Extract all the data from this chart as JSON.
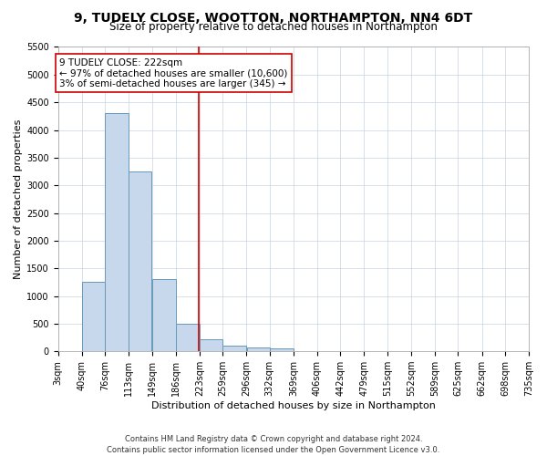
{
  "title": "9, TUDELY CLOSE, WOOTTON, NORTHAMPTON, NN4 6DT",
  "subtitle": "Size of property relative to detached houses in Northampton",
  "xlabel": "Distribution of detached houses by size in Northampton",
  "ylabel": "Number of detached properties",
  "footer_line1": "Contains HM Land Registry data © Crown copyright and database right 2024.",
  "footer_line2": "Contains public sector information licensed under the Open Government Licence v3.0.",
  "annotation_title": "9 TUDELY CLOSE: 222sqm",
  "annotation_line1": "← 97% of detached houses are smaller (10,600)",
  "annotation_line2": "3% of semi-detached houses are larger (345) →",
  "property_line_x": 222,
  "bar_color": "#c8d8ec",
  "bar_edge_color": "#6699bb",
  "annotation_box_edgecolor": "#cc0000",
  "property_line_color": "#cc0000",
  "ylim": [
    0,
    5500
  ],
  "yticks": [
    0,
    500,
    1000,
    1500,
    2000,
    2500,
    3000,
    3500,
    4000,
    4500,
    5000,
    5500
  ],
  "bins": [
    3,
    40,
    76,
    113,
    149,
    186,
    223,
    259,
    296,
    332,
    369,
    406,
    442,
    479,
    515,
    552,
    589,
    625,
    662,
    698,
    735
  ],
  "bar_heights": [
    0,
    1250,
    4300,
    3250,
    1300,
    500,
    225,
    100,
    75,
    55,
    0,
    0,
    0,
    0,
    0,
    0,
    0,
    0,
    0,
    0
  ],
  "title_fontsize": 10,
  "subtitle_fontsize": 8.5,
  "xlabel_fontsize": 8,
  "ylabel_fontsize": 8,
  "tick_fontsize": 7,
  "annotation_fontsize": 7.5,
  "footer_fontsize": 6
}
